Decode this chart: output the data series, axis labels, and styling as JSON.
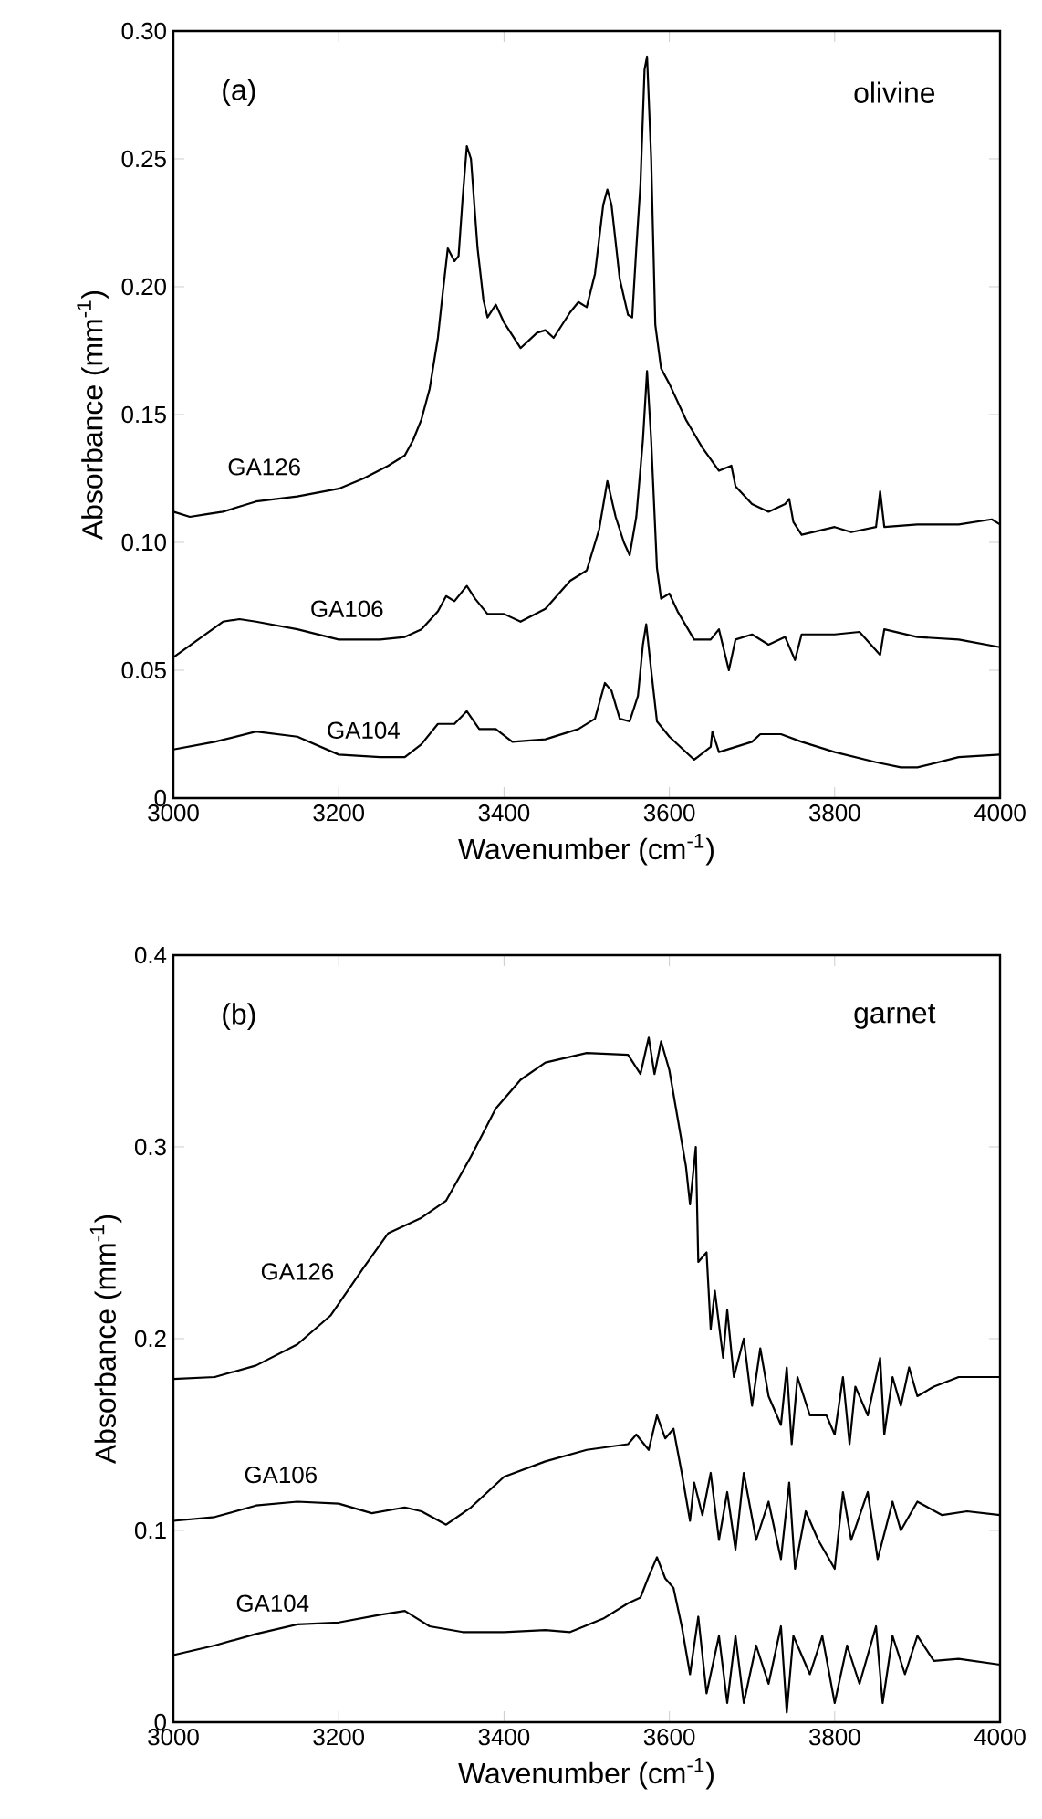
{
  "chart_data": [
    {
      "type": "line",
      "xlabel": "Wavenumber (cm$^{-1}$)",
      "ylabel": "Absorbance (mm$^{-1}$)",
      "annotations": [
        "(a)",
        "olivine"
      ],
      "xlim": [
        3000,
        4000
      ],
      "ylim": [
        0,
        0.3
      ],
      "xticks": [
        3000,
        3200,
        3400,
        3600,
        3800,
        4000
      ],
      "yticks": [
        0,
        0.05,
        {
          "value": 0.1,
          "label": "0.10"
        },
        0.15,
        {
          "value": 0.2,
          "label": "0.20"
        },
        0.25,
        {
          "value": 0.3,
          "label": "0.30"
        }
      ],
      "series": [
        {
          "name": "GA126",
          "color": "#000000",
          "x": [
            3000,
            3020,
            3040,
            3060,
            3080,
            3100,
            3150,
            3200,
            3230,
            3260,
            3280,
            3290,
            3300,
            3310,
            3320,
            3325,
            3332,
            3340,
            3345,
            3350,
            3355,
            3360,
            3368,
            3375,
            3380,
            3390,
            3400,
            3420,
            3440,
            3450,
            3460,
            3480,
            3490,
            3500,
            3510,
            3520,
            3525,
            3530,
            3540,
            3550,
            3555,
            3560,
            3565,
            3570,
            3573,
            3578,
            3583,
            3590,
            3600,
            3620,
            3640,
            3660,
            3675,
            3680,
            3700,
            3720,
            3740,
            3745,
            3750,
            3760,
            3800,
            3820,
            3850,
            3855,
            3860,
            3900,
            3950,
            3990,
            4000
          ],
          "values": [
            0.112,
            0.11,
            0.111,
            0.112,
            0.114,
            0.116,
            0.118,
            0.121,
            0.125,
            0.13,
            0.134,
            0.14,
            0.148,
            0.16,
            0.18,
            0.195,
            0.215,
            0.21,
            0.212,
            0.235,
            0.255,
            0.25,
            0.215,
            0.195,
            0.188,
            0.193,
            0.186,
            0.176,
            0.182,
            0.183,
            0.18,
            0.19,
            0.194,
            0.192,
            0.205,
            0.232,
            0.238,
            0.232,
            0.203,
            0.189,
            0.188,
            0.215,
            0.24,
            0.285,
            0.29,
            0.25,
            0.185,
            0.168,
            0.162,
            0.148,
            0.137,
            0.128,
            0.13,
            0.122,
            0.115,
            0.112,
            0.115,
            0.117,
            0.108,
            0.103,
            0.106,
            0.104,
            0.106,
            0.12,
            0.106,
            0.107,
            0.107,
            0.109,
            0.107
          ]
        },
        {
          "name": "GA106",
          "color": "#000000",
          "x": [
            3000,
            3030,
            3060,
            3080,
            3100,
            3150,
            3200,
            3250,
            3280,
            3300,
            3320,
            3330,
            3340,
            3355,
            3365,
            3380,
            3400,
            3420,
            3450,
            3480,
            3500,
            3515,
            3525,
            3535,
            3545,
            3552,
            3560,
            3568,
            3573,
            3578,
            3585,
            3590,
            3600,
            3610,
            3630,
            3650,
            3660,
            3672,
            3680,
            3700,
            3720,
            3740,
            3752,
            3760,
            3800,
            3830,
            3855,
            3860,
            3900,
            3950,
            4000
          ],
          "values": [
            0.055,
            0.062,
            0.069,
            0.07,
            0.069,
            0.066,
            0.062,
            0.062,
            0.063,
            0.066,
            0.073,
            0.079,
            0.077,
            0.083,
            0.078,
            0.072,
            0.072,
            0.069,
            0.074,
            0.085,
            0.089,
            0.105,
            0.124,
            0.11,
            0.1,
            0.095,
            0.11,
            0.14,
            0.167,
            0.14,
            0.09,
            0.078,
            0.08,
            0.073,
            0.062,
            0.062,
            0.066,
            0.05,
            0.062,
            0.064,
            0.06,
            0.063,
            0.054,
            0.064,
            0.064,
            0.065,
            0.056,
            0.066,
            0.063,
            0.062,
            0.059
          ]
        },
        {
          "name": "GA104",
          "color": "#000000",
          "x": [
            3000,
            3050,
            3100,
            3150,
            3200,
            3250,
            3280,
            3300,
            3320,
            3340,
            3355,
            3370,
            3390,
            3410,
            3450,
            3490,
            3510,
            3522,
            3530,
            3540,
            3552,
            3562,
            3568,
            3572,
            3578,
            3585,
            3600,
            3630,
            3650,
            3652,
            3660,
            3700,
            3710,
            3735,
            3760,
            3800,
            3850,
            3880,
            3900,
            3950,
            4000
          ],
          "values": [
            0.019,
            0.022,
            0.026,
            0.024,
            0.017,
            0.016,
            0.016,
            0.021,
            0.029,
            0.029,
            0.034,
            0.027,
            0.027,
            0.022,
            0.023,
            0.027,
            0.031,
            0.045,
            0.042,
            0.031,
            0.03,
            0.04,
            0.06,
            0.068,
            0.05,
            0.03,
            0.024,
            0.015,
            0.02,
            0.026,
            0.018,
            0.022,
            0.025,
            0.025,
            0.022,
            0.018,
            0.014,
            0.012,
            0.012,
            0.016,
            0.017
          ]
        }
      ]
    },
    {
      "type": "line",
      "xlabel": "Wavenumber (cm$^{-1}$)",
      "ylabel": "Absorbance (mm$^{-1}$)",
      "annotations": [
        "(b)",
        "garnet"
      ],
      "xlim": [
        3000,
        4000
      ],
      "ylim": [
        0,
        0.4
      ],
      "xticks": [
        3000,
        3200,
        3400,
        3600,
        3800,
        4000
      ],
      "yticks": [
        0,
        0.1,
        0.2,
        0.3,
        0.4
      ],
      "series": [
        {
          "name": "GA126",
          "color": "#000000",
          "x": [
            3000,
            3050,
            3100,
            3150,
            3190,
            3230,
            3260,
            3300,
            3330,
            3360,
            3390,
            3420,
            3450,
            3500,
            3550,
            3565,
            3575,
            3582,
            3590,
            3600,
            3610,
            3620,
            3625,
            3632,
            3635,
            3645,
            3650,
            3655,
            3665,
            3670,
            3678,
            3690,
            3700,
            3710,
            3720,
            3735,
            3742,
            3748,
            3755,
            3770,
            3790,
            3800,
            3810,
            3818,
            3825,
            3840,
            3855,
            3860,
            3870,
            3880,
            3890,
            3900,
            3920,
            3950,
            4000
          ],
          "values": [
            0.179,
            0.18,
            0.186,
            0.197,
            0.212,
            0.237,
            0.255,
            0.263,
            0.272,
            0.295,
            0.32,
            0.335,
            0.344,
            0.349,
            0.348,
            0.338,
            0.357,
            0.338,
            0.355,
            0.34,
            0.315,
            0.29,
            0.27,
            0.3,
            0.24,
            0.245,
            0.205,
            0.225,
            0.19,
            0.215,
            0.18,
            0.2,
            0.165,
            0.195,
            0.17,
            0.155,
            0.185,
            0.145,
            0.18,
            0.16,
            0.16,
            0.15,
            0.18,
            0.145,
            0.175,
            0.16,
            0.19,
            0.15,
            0.18,
            0.165,
            0.185,
            0.17,
            0.175,
            0.18,
            0.18
          ]
        },
        {
          "name": "GA106",
          "color": "#000000",
          "x": [
            3000,
            3050,
            3100,
            3150,
            3200,
            3240,
            3280,
            3300,
            3330,
            3360,
            3400,
            3450,
            3500,
            3550,
            3560,
            3575,
            3585,
            3595,
            3605,
            3615,
            3625,
            3630,
            3640,
            3650,
            3660,
            3670,
            3680,
            3690,
            3705,
            3720,
            3735,
            3745,
            3752,
            3765,
            3780,
            3800,
            3810,
            3820,
            3840,
            3852,
            3870,
            3880,
            3900,
            3930,
            3960,
            4000
          ],
          "values": [
            0.105,
            0.107,
            0.113,
            0.115,
            0.114,
            0.109,
            0.112,
            0.11,
            0.103,
            0.112,
            0.128,
            0.136,
            0.142,
            0.145,
            0.15,
            0.142,
            0.16,
            0.148,
            0.153,
            0.13,
            0.105,
            0.125,
            0.108,
            0.13,
            0.095,
            0.12,
            0.09,
            0.13,
            0.095,
            0.115,
            0.085,
            0.125,
            0.08,
            0.11,
            0.095,
            0.08,
            0.12,
            0.095,
            0.12,
            0.085,
            0.115,
            0.1,
            0.115,
            0.108,
            0.11,
            0.108
          ]
        },
        {
          "name": "GA104",
          "color": "#000000",
          "x": [
            3000,
            3050,
            3100,
            3150,
            3200,
            3250,
            3280,
            3310,
            3350,
            3400,
            3450,
            3480,
            3520,
            3550,
            3565,
            3575,
            3585,
            3595,
            3605,
            3615,
            3625,
            3635,
            3645,
            3660,
            3670,
            3680,
            3690,
            3705,
            3720,
            3735,
            3742,
            3750,
            3770,
            3785,
            3800,
            3815,
            3830,
            3850,
            3858,
            3870,
            3885,
            3900,
            3920,
            3950,
            4000
          ],
          "values": [
            0.035,
            0.04,
            0.046,
            0.051,
            0.052,
            0.056,
            0.058,
            0.05,
            0.047,
            0.047,
            0.048,
            0.047,
            0.054,
            0.062,
            0.065,
            0.076,
            0.086,
            0.075,
            0.07,
            0.05,
            0.025,
            0.055,
            0.015,
            0.045,
            0.01,
            0.045,
            0.01,
            0.04,
            0.02,
            0.05,
            0.005,
            0.045,
            0.025,
            0.045,
            0.01,
            0.04,
            0.02,
            0.05,
            0.01,
            0.045,
            0.025,
            0.045,
            0.032,
            0.033,
            0.03
          ]
        }
      ]
    }
  ]
}
